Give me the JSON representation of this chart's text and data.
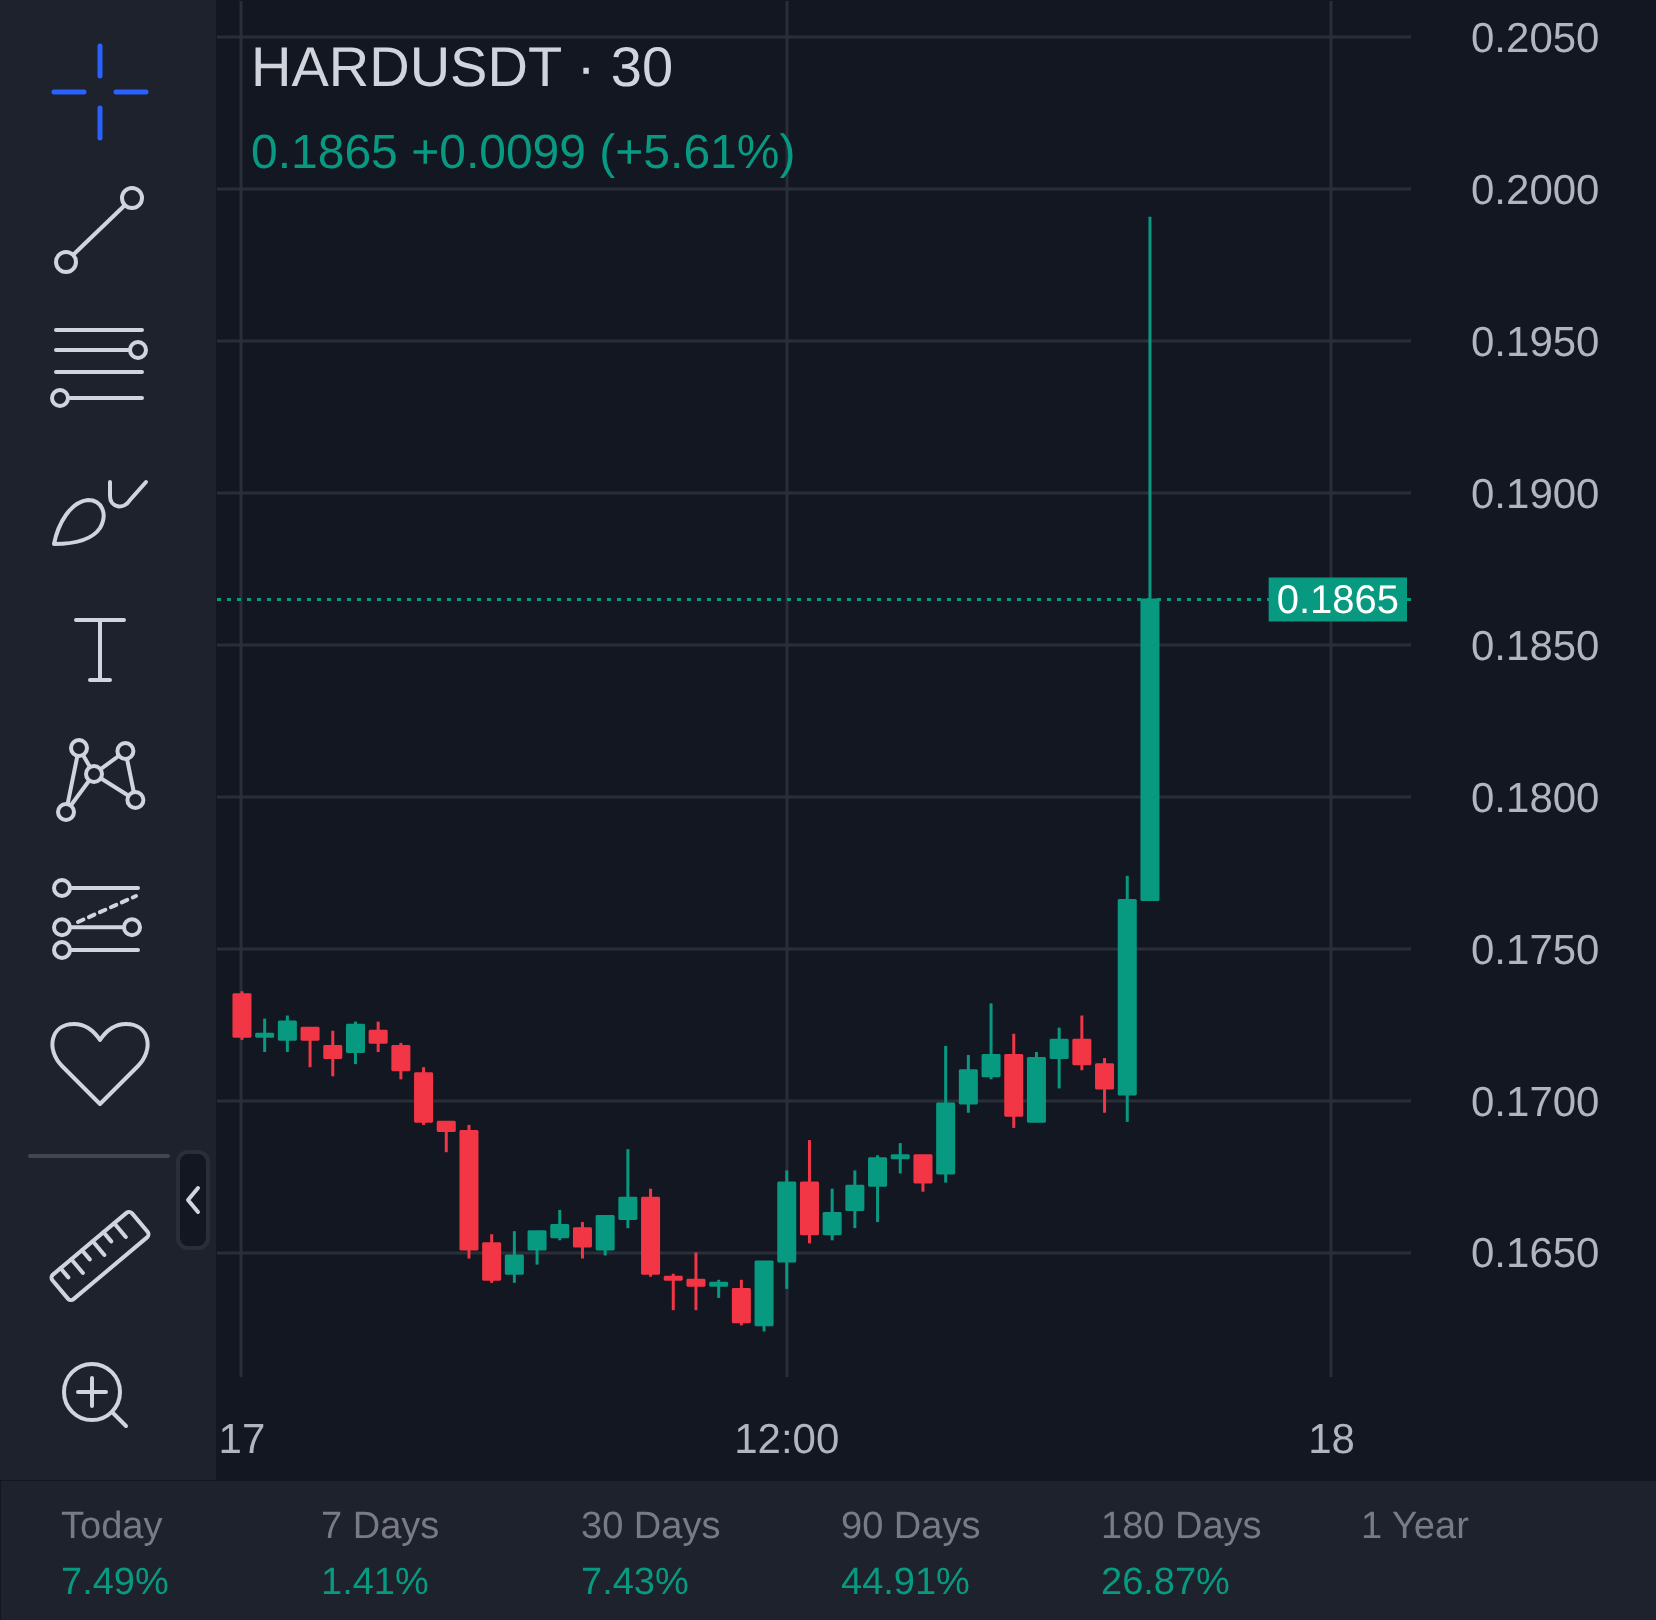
{
  "chart_data": {
    "type": "candlestick",
    "title": "HARDUSDT · 30",
    "subtitle": "0.1865  +0.0099 (+5.61%)",
    "categories": [
      "17",
      null,
      null,
      null,
      null,
      null,
      null,
      null,
      null,
      null,
      null,
      null,
      null,
      null,
      null,
      null,
      null,
      null,
      null,
      null,
      null,
      null,
      null,
      null,
      "12:00",
      null,
      null,
      null,
      null,
      null,
      null,
      null,
      null,
      null,
      null,
      null,
      null,
      null,
      null,
      null,
      null,
      null,
      null,
      null,
      null,
      null,
      null,
      null,
      "18",
      null,
      null,
      null
    ],
    "ohlc": [
      [
        0.1735,
        0.1736,
        0.172,
        0.1721
      ],
      [
        0.1721,
        0.1727,
        0.1716,
        0.1722
      ],
      [
        0.172,
        0.1728,
        0.1716,
        0.1726
      ],
      [
        0.1724,
        0.1724,
        0.1711,
        0.172
      ],
      [
        0.1718,
        0.1723,
        0.1708,
        0.1714
      ],
      [
        0.1716,
        0.1726,
        0.1712,
        0.1725
      ],
      [
        0.1723,
        0.1726,
        0.1716,
        0.1719
      ],
      [
        0.1718,
        0.1719,
        0.1707,
        0.171
      ],
      [
        0.1709,
        0.1711,
        0.1692,
        0.1693
      ],
      [
        0.1693,
        0.1693,
        0.1683,
        0.169
      ],
      [
        0.169,
        0.1692,
        0.1648,
        0.1651
      ],
      [
        0.1653,
        0.1656,
        0.164,
        0.1641
      ],
      [
        0.1643,
        0.1657,
        0.164,
        0.1649
      ],
      [
        0.1651,
        0.1657,
        0.1646,
        0.1657
      ],
      [
        0.1655,
        0.1664,
        0.1654,
        0.1659
      ],
      [
        0.1658,
        0.166,
        0.1648,
        0.1652
      ],
      [
        0.1651,
        0.1662,
        0.1649,
        0.1662
      ],
      [
        0.1661,
        0.1684,
        0.1658,
        0.1668
      ],
      [
        0.1668,
        0.1671,
        0.1642,
        0.1643
      ],
      [
        0.1642,
        0.1643,
        0.1631,
        0.1641
      ],
      [
        0.1641,
        0.165,
        0.1631,
        0.1639
      ],
      [
        0.1639,
        0.1641,
        0.1635,
        0.164
      ],
      [
        0.1638,
        0.1641,
        0.1626,
        0.1627
      ],
      [
        0.1626,
        0.1647,
        0.1624,
        0.1647
      ],
      [
        0.1647,
        0.1677,
        0.1638,
        0.1673
      ],
      [
        0.1673,
        0.1687,
        0.1653,
        0.1656
      ],
      [
        0.1656,
        0.1671,
        0.1654,
        0.1663
      ],
      [
        0.1664,
        0.1677,
        0.1658,
        0.1672
      ],
      [
        0.1672,
        0.1682,
        0.166,
        0.1681
      ],
      [
        0.1681,
        0.1686,
        0.1676,
        0.1682
      ],
      [
        0.1682,
        0.1682,
        0.167,
        0.1673
      ],
      [
        0.1676,
        0.1718,
        0.1673,
        0.1699
      ],
      [
        0.1699,
        0.1715,
        0.1696,
        0.171
      ],
      [
        0.1708,
        0.1732,
        0.1707,
        0.1715
      ],
      [
        0.1715,
        0.1722,
        0.1691,
        0.1695
      ],
      [
        0.1693,
        0.1716,
        0.1693,
        0.1714
      ],
      [
        0.1714,
        0.1724,
        0.1704,
        0.172
      ],
      [
        0.172,
        0.1728,
        0.171,
        0.1712
      ],
      [
        0.1712,
        0.1714,
        0.1696,
        0.1704
      ],
      [
        0.1702,
        0.1774,
        0.1693,
        0.1766
      ],
      [
        0.1766,
        0.1991,
        0.1766,
        0.1865
      ],
      null,
      null,
      null,
      null,
      null,
      null,
      null,
      null,
      null,
      null,
      null
    ],
    "colors": [
      "#f23645",
      "#089981",
      "#089981",
      "#f23645",
      "#f23645",
      "#089981",
      "#f23645",
      "#f23645",
      "#f23645",
      "#f23645",
      "#f23645",
      "#f23645",
      "#089981",
      "#089981",
      "#089981",
      "#f23645",
      "#089981",
      "#089981",
      "#f23645",
      "#f23645",
      "#f23645",
      "#089981",
      "#f23645",
      "#089981",
      "#089981",
      "#f23645",
      "#089981",
      "#089981",
      "#089981",
      "#089981",
      "#f23645",
      "#089981",
      "#089981",
      "#089981",
      "#f23645",
      "#089981",
      "#089981",
      "#f23645",
      "#f23645",
      "#089981",
      "#089981",
      null,
      null,
      null,
      null,
      null,
      null,
      null,
      null,
      null,
      null,
      null
    ],
    "ylim": [
      0.1609,
      0.2062
    ],
    "yticks": [
      {
        "value": 0.165,
        "label": "0.1650"
      },
      {
        "value": 0.17,
        "label": "0.1700"
      },
      {
        "value": 0.175,
        "label": "0.1750"
      },
      {
        "value": 0.18,
        "label": "0.1800"
      },
      {
        "value": 0.185,
        "label": "0.1850"
      },
      {
        "value": 0.19,
        "label": "0.1900"
      },
      {
        "value": 0.195,
        "label": "0.1950"
      },
      {
        "value": 0.2,
        "label": "0.2000"
      },
      {
        "value": 0.205,
        "label": "0.2050"
      }
    ],
    "grid": true,
    "ref_lines": [
      {
        "axis": "y",
        "value": 0.1865,
        "label": "0.1865",
        "color": "#089981",
        "line_style": "dotted"
      }
    ],
    "annotations": [
      "Today\n7.49%",
      "7 Days\n1.41%",
      "30 Days\n7.43%",
      "90 Days\n44.91%",
      "180 Days\n26.87%",
      "1 Year"
    ]
  }
}
